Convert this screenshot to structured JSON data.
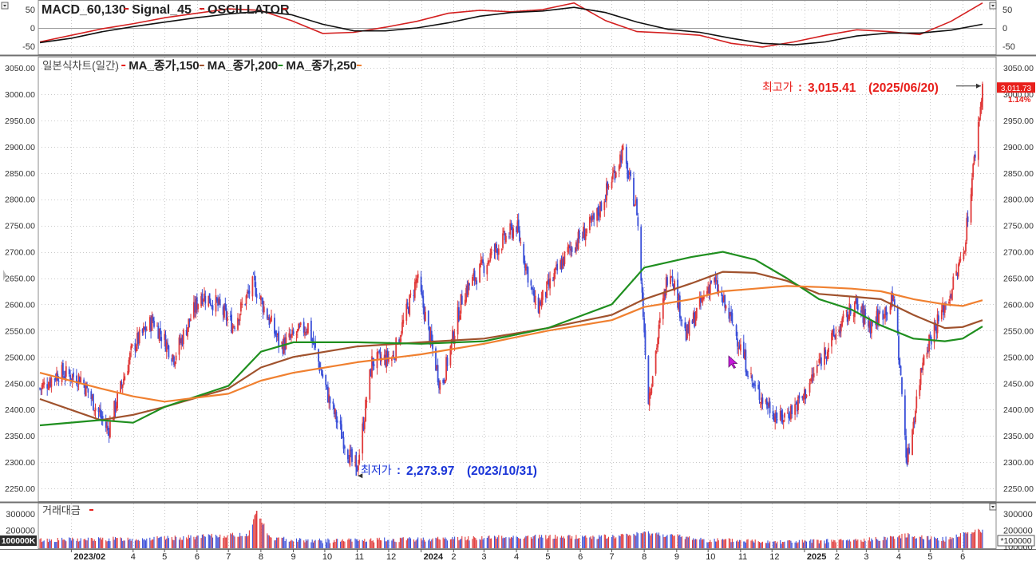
{
  "chart_data": [
    {
      "type": "line",
      "panel": "macd",
      "legend": [
        {
          "text": "MACD_60,130",
          "color": "#d42020"
        },
        {
          "text": "Signal_45",
          "color": "#d42020"
        },
        {
          "text": "OSCILLATOR",
          "color": "#d42020"
        }
      ],
      "ylim": [
        -60,
        60
      ],
      "ticks": [
        50,
        0,
        -50
      ],
      "tick_labels": [
        "50",
        "0",
        "-50"
      ],
      "series": [
        {
          "name": "MACD_60,130",
          "color": "#d42020",
          "x": [
            0,
            20,
            40,
            60,
            80,
            100,
            120,
            140,
            160,
            180,
            200,
            220,
            240,
            260,
            280,
            300,
            320,
            340,
            360,
            380,
            400,
            420,
            440,
            460,
            480,
            500,
            520,
            540,
            560,
            580,
            600
          ],
          "values": [
            -38,
            -20,
            -2,
            12,
            28,
            40,
            52,
            48,
            20,
            -15,
            -12,
            2,
            18,
            40,
            48,
            44,
            50,
            68,
            20,
            -10,
            -14,
            -20,
            -42,
            -52,
            -38,
            -20,
            -5,
            -10,
            -18,
            18,
            68
          ]
        },
        {
          "name": "Signal_45",
          "color": "#111111",
          "x": [
            0,
            20,
            40,
            60,
            80,
            100,
            120,
            140,
            160,
            180,
            200,
            220,
            240,
            260,
            280,
            300,
            320,
            340,
            360,
            380,
            400,
            420,
            440,
            460,
            480,
            500,
            520,
            540,
            560,
            580,
            600
          ],
          "values": [
            -40,
            -28,
            -10,
            4,
            16,
            28,
            38,
            45,
            36,
            10,
            -8,
            -8,
            0,
            14,
            32,
            42,
            46,
            56,
            42,
            16,
            -4,
            -12,
            -28,
            -42,
            -46,
            -38,
            -22,
            -14,
            -14,
            -6,
            10
          ]
        }
      ]
    },
    {
      "type": "candlestick",
      "panel": "price",
      "title": "일본식차트(일간)",
      "legend": [
        {
          "text": "MA_종가,150",
          "color": "#a0522d"
        },
        {
          "text": "MA_종가,200",
          "color": "#1f8f1f"
        },
        {
          "text": "MA_종가,250",
          "color": "#f08030"
        }
      ],
      "ylim": [
        2225,
        3060
      ],
      "ticks": [
        3050,
        3000,
        2950,
        2900,
        2850,
        2800,
        2750,
        2700,
        2650,
        2600,
        2550,
        2500,
        2450,
        2400,
        2350,
        2300,
        2250
      ],
      "tick_labels": [
        "3050.00",
        "3000.00",
        "2950.00",
        "2900.00",
        "2850.00",
        "2800.00",
        "2750.00",
        "2700.00",
        "2650.00",
        "2600.00",
        "2550.00",
        "2500.00",
        "2450.00",
        "2400.00",
        "2350.00",
        "2300.00",
        "2250.00"
      ],
      "x_dates": [
        "2023-01-02",
        "2025-06-20"
      ],
      "price_path": {
        "dates": [
          "2023-01-02",
          "2023-01-20",
          "2023-02-10",
          "2023-03-08",
          "2023-04-01",
          "2023-04-20",
          "2023-05-10",
          "2023-06-05",
          "2023-06-20",
          "2023-07-05",
          "2023-07-25",
          "2023-08-20",
          "2023-09-15",
          "2023-10-05",
          "2023-10-31",
          "2023-11-15",
          "2023-12-05",
          "2023-12-28",
          "2024-01-20",
          "2024-02-10",
          "2024-03-10",
          "2024-04-01",
          "2024-04-20",
          "2024-05-20",
          "2024-06-15",
          "2024-07-11",
          "2024-07-25",
          "2024-08-05",
          "2024-08-25",
          "2024-09-10",
          "2024-10-05",
          "2024-10-25",
          "2024-11-14",
          "2024-12-09",
          "2024-12-30",
          "2025-01-20",
          "2025-02-18",
          "2025-03-05",
          "2025-03-28",
          "2025-04-09",
          "2025-04-25",
          "2025-05-20",
          "2025-06-02",
          "2025-06-20"
        ],
        "closes": [
          2440,
          2470,
          2460,
          2360,
          2520,
          2570,
          2500,
          2620,
          2600,
          2560,
          2640,
          2520,
          2560,
          2420,
          2277,
          2490,
          2500,
          2650,
          2440,
          2620,
          2700,
          2750,
          2590,
          2700,
          2760,
          2890,
          2780,
          2420,
          2680,
          2540,
          2650,
          2560,
          2440,
          2380,
          2420,
          2510,
          2600,
          2560,
          2610,
          2300,
          2510,
          2620,
          2700,
          3012
        ]
      },
      "ma": {
        "dates": [
          "2023-01-02",
          "2023-03-01",
          "2023-04-01",
          "2023-05-01",
          "2023-07-01",
          "2023-08-01",
          "2023-09-01",
          "2023-11-01",
          "2024-01-01",
          "2024-03-01",
          "2024-05-01",
          "2024-07-01",
          "2024-08-01",
          "2024-09-15",
          "2024-10-15",
          "2024-11-15",
          "2024-12-15",
          "2025-01-15",
          "2025-02-15",
          "2025-03-15",
          "2025-04-15",
          "2025-05-15",
          "2025-06-01",
          "2025-06-20"
        ],
        "ma150": [
          2420,
          2380,
          2390,
          2405,
          2440,
          2480,
          2500,
          2520,
          2528,
          2535,
          2555,
          2580,
          2610,
          2640,
          2662,
          2660,
          2645,
          2620,
          2615,
          2610,
          2580,
          2555,
          2557,
          2570
        ],
        "ma200": [
          2370,
          2380,
          2375,
          2405,
          2445,
          2510,
          2528,
          2528,
          2525,
          2530,
          2555,
          2600,
          2670,
          2690,
          2700,
          2685,
          2650,
          2610,
          2590,
          2560,
          2535,
          2530,
          2535,
          2558
        ],
        "ma250": [
          2470,
          2440,
          2425,
          2415,
          2430,
          2455,
          2470,
          2490,
          2505,
          2525,
          2550,
          2570,
          2595,
          2610,
          2625,
          2630,
          2635,
          2633,
          2630,
          2625,
          2610,
          2600,
          2597,
          2608
        ]
      },
      "annotations": [
        {
          "label": "최고가",
          "value": "3,015.41",
          "date": "(2025/06/20)",
          "color": "#e8201c"
        },
        {
          "label": "최저가",
          "value": "2,273.97",
          "date": "(2023/10/31)",
          "color": "#1a35d8"
        }
      ],
      "last_price": {
        "price": "3,011.73",
        "change": "1.14%"
      }
    },
    {
      "type": "bar",
      "panel": "volume",
      "title": "거래대금",
      "ylim": [
        90000,
        340000
      ],
      "ticks": [
        300000,
        200000,
        100000
      ],
      "tick_labels": [
        "300000",
        "200000",
        "100000"
      ],
      "unit": "*100000",
      "bottom_label": "100000K",
      "x_dates": [
        "2023-01-02",
        "2025-06-20"
      ],
      "volume_path": {
        "dates": [
          "2023-01-02",
          "2023-03-01",
          "2023-05-01",
          "2023-07-20",
          "2023-07-28",
          "2023-08-10",
          "2023-10-01",
          "2024-01-01",
          "2024-04-01",
          "2024-07-01",
          "2024-08-05",
          "2024-10-01",
          "2025-01-01",
          "2025-03-01",
          "2025-04-09",
          "2025-05-15",
          "2025-06-10"
        ],
        "values": [
          140000,
          145000,
          150000,
          175000,
          320000,
          150000,
          135000,
          145000,
          160000,
          160000,
          185000,
          140000,
          130000,
          140000,
          170000,
          145000,
          195000
        ]
      }
    }
  ],
  "x_axis": {
    "ticks": [
      {
        "label": "2023/02",
        "date": "2023-02-01"
      },
      {
        "label": "4",
        "date": "2023-04-01"
      },
      {
        "label": "5",
        "date": "2023-05-01"
      },
      {
        "label": "6",
        "date": "2023-06-01"
      },
      {
        "label": "7",
        "date": "2023-07-01"
      },
      {
        "label": "8",
        "date": "2023-08-01"
      },
      {
        "label": "9",
        "date": "2023-09-01"
      },
      {
        "label": "10",
        "date": "2023-10-01"
      },
      {
        "label": "11",
        "date": "2023-11-01"
      },
      {
        "label": "12",
        "date": "2023-12-01"
      },
      {
        "label": "2024",
        "date": "2024-01-01"
      },
      {
        "label": "2",
        "date": "2024-02-01"
      },
      {
        "label": "3",
        "date": "2024-03-01"
      },
      {
        "label": "4",
        "date": "2024-04-01"
      },
      {
        "label": "5",
        "date": "2024-05-01"
      },
      {
        "label": "6",
        "date": "2024-06-01"
      },
      {
        "label": "7",
        "date": "2024-07-01"
      },
      {
        "label": "8",
        "date": "2024-08-01"
      },
      {
        "label": "9",
        "date": "2024-09-01"
      },
      {
        "label": "10",
        "date": "2024-10-01"
      },
      {
        "label": "11",
        "date": "2024-11-01"
      },
      {
        "label": "12",
        "date": "2024-12-01"
      },
      {
        "label": "2025",
        "date": "2025-01-01"
      },
      {
        "label": "2",
        "date": "2025-02-01"
      },
      {
        "label": "3",
        "date": "2025-03-01"
      },
      {
        "label": "4",
        "date": "2025-04-01"
      },
      {
        "label": "5",
        "date": "2025-05-01"
      },
      {
        "label": "6",
        "date": "2025-06-01"
      }
    ]
  },
  "colors": {
    "up": "#e03a3a",
    "down": "#3a4fd8",
    "grid": "#c8c8c8",
    "separator": "#9a9a9a"
  }
}
